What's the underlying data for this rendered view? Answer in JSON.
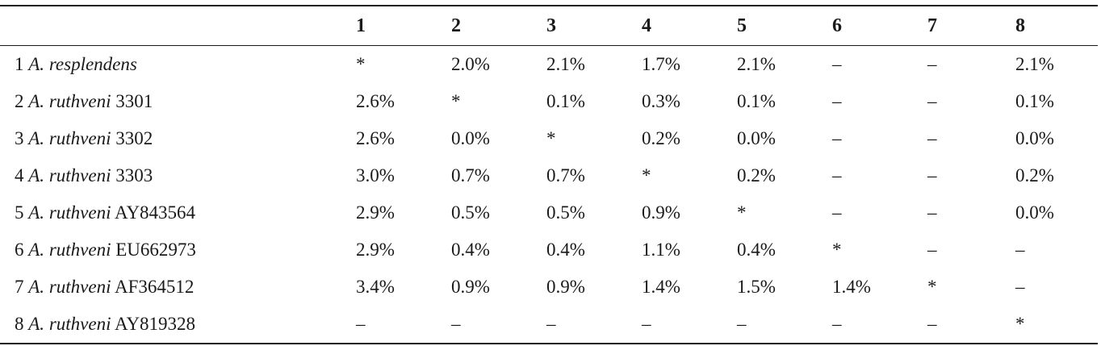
{
  "header": {
    "empty": "",
    "columns": [
      "1",
      "2",
      "3",
      "4",
      "5",
      "6",
      "7",
      "8"
    ]
  },
  "rows": [
    {
      "num": "1",
      "genus": "A.",
      "species": "resplendens",
      "accession": "",
      "cells": [
        "*",
        "2.0%",
        "2.1%",
        "1.7%",
        "2.1%",
        "–",
        "–",
        "2.1%"
      ]
    },
    {
      "num": "2",
      "genus": "A.",
      "species": "ruthveni",
      "accession": "3301",
      "cells": [
        "2.6%",
        "*",
        "0.1%",
        "0.3%",
        "0.1%",
        "–",
        "–",
        "0.1%"
      ]
    },
    {
      "num": "3",
      "genus": "A.",
      "species": "ruthveni",
      "accession": "3302",
      "cells": [
        "2.6%",
        "0.0%",
        "*",
        "0.2%",
        "0.0%",
        "–",
        "–",
        "0.0%"
      ]
    },
    {
      "num": "4",
      "genus": "A.",
      "species": "ruthveni",
      "accession": "3303",
      "cells": [
        "3.0%",
        "0.7%",
        "0.7%",
        "*",
        "0.2%",
        "–",
        "–",
        "0.2%"
      ]
    },
    {
      "num": "5",
      "genus": "A.",
      "species": "ruthveni",
      "accession": "AY843564",
      "cells": [
        "2.9%",
        "0.5%",
        "0.5%",
        "0.9%",
        "*",
        "–",
        "–",
        "0.0%"
      ]
    },
    {
      "num": "6",
      "genus": "A.",
      "species": "ruthveni",
      "accession": "EU662973",
      "cells": [
        "2.9%",
        "0.4%",
        "0.4%",
        "1.1%",
        "0.4%",
        "*",
        "–",
        "–"
      ]
    },
    {
      "num": "7",
      "genus": "A.",
      "species": "ruthveni",
      "accession": "AF364512",
      "cells": [
        "3.4%",
        "0.9%",
        "0.9%",
        "1.4%",
        "1.5%",
        "1.4%",
        "*",
        "–"
      ]
    },
    {
      "num": "8",
      "genus": "A.",
      "species": "ruthveni",
      "accession": "AY819328",
      "cells": [
        "–",
        "–",
        "–",
        "–",
        "–",
        "–",
        "–",
        "*"
      ]
    }
  ]
}
